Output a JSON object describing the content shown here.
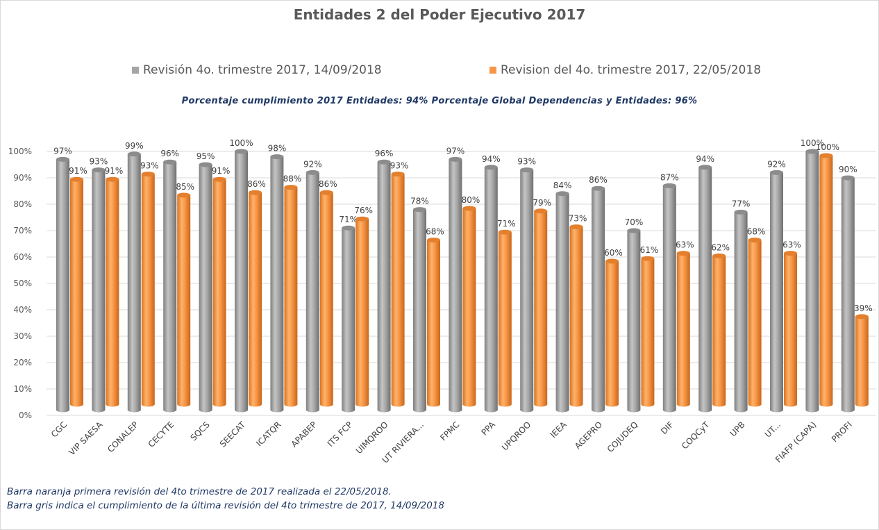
{
  "chart_data": {
    "type": "bar",
    "title": "Entidades 2 del Poder Ejecutivo 2017",
    "categories": [
      "CGC",
      "VIP SAESA",
      "CONALEP",
      "CECYTE",
      "SQCS",
      "SEECAT",
      "ICATQR",
      "APABEP",
      "ITS FCP",
      "UIMQROO",
      "UT RIVIERA...",
      "FPMC",
      "PPA",
      "UPQROO",
      "IEEA",
      "AGEPRO",
      "COJUDEQ",
      "DIF",
      "COQCyT",
      "UPB",
      "UT...",
      "FIAFP (CAPA)",
      "PROFI"
    ],
    "series": [
      {
        "name": "Revisión 4o. trimestre 2017, 14/09/2018",
        "color": "#a5a5a5",
        "values": [
          97,
          93,
          99,
          96,
          95,
          100,
          98,
          92,
          71,
          96,
          78,
          97,
          94,
          93,
          84,
          86,
          70,
          87,
          94,
          77,
          92,
          100,
          90
        ],
        "labels": [
          "97%",
          "93%",
          "99%",
          "96%",
          "95%",
          "100%",
          "98%",
          "92%",
          "71%",
          "96%",
          "78%",
          "97%",
          "94%",
          "93%",
          "84%",
          "86%",
          "70%",
          "87%",
          "94%",
          "77%",
          "92%",
          "100%",
          "90%"
        ]
      },
      {
        "name": "Revision del 4o. trimestre 2017, 22/05/2018",
        "color": "#f79646",
        "values": [
          91,
          91,
          93,
          85,
          91,
          86,
          88,
          86,
          76,
          93,
          68,
          80,
          71,
          79,
          73,
          60,
          61,
          63,
          62,
          68,
          63,
          100,
          39
        ],
        "labels": [
          "91%",
          "91%",
          "93%",
          "85%",
          "91%",
          "86%",
          "88%",
          "86%",
          "76%",
          "93%",
          "68%",
          "80%",
          "71%",
          "79%",
          "73%",
          "60%",
          "61%",
          "63%",
          "62%",
          "68%",
          "63%",
          "100%",
          "39%"
        ]
      }
    ],
    "y_ticks": [
      "0%",
      "10%",
      "20%",
      "30%",
      "40%",
      "50%",
      "60%",
      "70%",
      "80%",
      "90%",
      "100%"
    ],
    "ylim": [
      0,
      100
    ],
    "grid": true,
    "legend_position": "top"
  },
  "note": "Porcentaje cumplimiento 2017 Entidades: 94%    Porcentaje Global Dependencias y Entidades: 96%",
  "footnotes": [
    "Barra naranja primera revisión del 4to trimestre de 2017 realizada el 22/05/2018.",
    "Barra gris indica el cumplimiento de la última revisión del 4to trimestre de 2017, 14/09/2018"
  ]
}
